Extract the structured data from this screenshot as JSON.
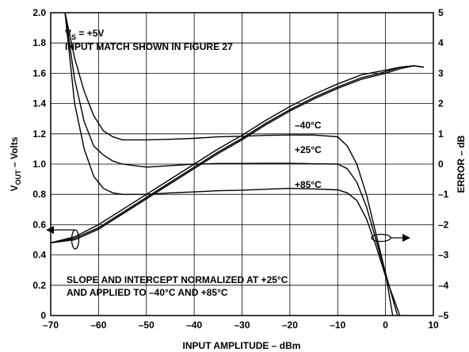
{
  "chart_data": {
    "type": "line",
    "xlabel": "INPUT AMPLITUDE – dBm",
    "ylabel_left": "V_OUT – Volts",
    "ylabel_left_parts": {
      "main": "V",
      "sub": "OUT",
      "rest": " – Volts"
    },
    "ylabel_right": "ERROR – dB",
    "xlim": [
      -70,
      10
    ],
    "ylim_left": [
      0,
      2.0
    ],
    "ylim_right": [
      -5,
      5
    ],
    "x_ticks": [
      -70,
      -60,
      -50,
      -40,
      -30,
      -20,
      -10,
      0,
      10
    ],
    "x_tick_labels": [
      "–70",
      "–60",
      "–50",
      "–40",
      "–30",
      "–20",
      "–10",
      "0",
      "10"
    ],
    "y_left_ticks": [
      0,
      0.2,
      0.4,
      0.6,
      0.8,
      1.0,
      1.2,
      1.4,
      1.6,
      1.8,
      2.0
    ],
    "y_left_tick_labels": [
      "0",
      "0.2",
      "0.4",
      "0.6",
      "0.8",
      "1.0",
      "1.2",
      "1.4",
      "1.6",
      "1.8",
      "2.0"
    ],
    "y_right_ticks": [
      -5,
      -4,
      -3,
      -2,
      -1,
      0,
      1,
      2,
      3,
      4,
      5
    ],
    "y_right_tick_labels": [
      "–5",
      "–4",
      "–3",
      "–2",
      "–1",
      "0",
      "1",
      "2",
      "3",
      "4",
      "5"
    ],
    "grid": true,
    "annotations": {
      "supply": {
        "main": "V",
        "sub": "S",
        "rest": " = +5V"
      },
      "input_match": "INPUT MATCH SHOWN IN FIGURE 27",
      "normalized_line1": "SLOPE AND INTERCEPT NORMALIZED AT +25°C",
      "normalized_line2": "AND APPLIED TO –40°C AND +85°C"
    },
    "vout_series": [
      {
        "name": "",
        "x": [
          -70,
          -65,
          -60,
          -55,
          -50,
          -45,
          -40,
          -35,
          -30,
          -25,
          -20,
          -15,
          -10,
          -5,
          0,
          3,
          6,
          8
        ],
        "y": [
          0.48,
          0.52,
          0.6,
          0.7,
          0.8,
          0.9,
          1.0,
          1.1,
          1.19,
          1.29,
          1.38,
          1.46,
          1.53,
          1.59,
          1.62,
          1.64,
          1.65,
          1.64
        ]
      },
      {
        "name": "",
        "x": [
          -70,
          -65,
          -60,
          -55,
          -50,
          -45,
          -40,
          -35,
          -30,
          -25,
          -20,
          -15,
          -10,
          -5,
          0,
          3,
          6,
          8
        ],
        "y": [
          0.48,
          0.51,
          0.58,
          0.68,
          0.78,
          0.88,
          0.98,
          1.08,
          1.17,
          1.27,
          1.36,
          1.44,
          1.51,
          1.57,
          1.61,
          1.64,
          1.65,
          1.64
        ]
      },
      {
        "name": "",
        "x": [
          -70,
          -65,
          -60,
          -55,
          -50,
          -45,
          -40,
          -35,
          -30,
          -25,
          -20,
          -15,
          -10,
          -5,
          0,
          3,
          6,
          8
        ],
        "y": [
          0.48,
          0.5,
          0.57,
          0.67,
          0.77,
          0.87,
          0.97,
          1.07,
          1.16,
          1.26,
          1.35,
          1.43,
          1.5,
          1.56,
          1.6,
          1.63,
          1.65,
          1.64
        ]
      }
    ],
    "error_series": [
      {
        "name": "–40°C",
        "x": [
          -67,
          -65,
          -63,
          -61,
          -59,
          -57,
          -55,
          -50,
          -45,
          -40,
          -35,
          -30,
          -25,
          -20,
          -15,
          -10,
          -8,
          -6,
          -4,
          -2,
          0,
          1.5
        ],
        "y": [
          5,
          3.5,
          2.4,
          1.6,
          1.1,
          0.9,
          0.8,
          0.8,
          0.82,
          0.85,
          0.9,
          0.92,
          0.95,
          0.96,
          0.96,
          0.9,
          0.6,
          0.0,
          -1.0,
          -2.3,
          -3.6,
          -5
        ]
      },
      {
        "name": "+25°C",
        "x": [
          -67,
          -65,
          -63,
          -61,
          -59,
          -57,
          -55,
          -50,
          -45,
          -40,
          -35,
          -30,
          -25,
          -20,
          -15,
          -10,
          -8,
          -6,
          -4,
          -2,
          0,
          2.5
        ],
        "y": [
          5,
          2.8,
          1.4,
          0.6,
          0.3,
          0.1,
          0.0,
          -0.1,
          -0.05,
          0.0,
          0.02,
          0.02,
          0.03,
          0.03,
          0.01,
          0.0,
          -0.15,
          -0.6,
          -1.4,
          -2.5,
          -3.6,
          -5
        ]
      },
      {
        "name": "+85°C",
        "x": [
          -67,
          -65,
          -63,
          -61,
          -59,
          -57,
          -55,
          -50,
          -45,
          -40,
          -35,
          -30,
          -25,
          -20,
          -15,
          -10,
          -8,
          -6,
          -4,
          -2,
          0,
          3
        ],
        "y": [
          5,
          2.0,
          0.5,
          -0.4,
          -0.8,
          -0.95,
          -1.0,
          -1.0,
          -0.95,
          -0.92,
          -0.88,
          -0.86,
          -0.83,
          -0.8,
          -0.82,
          -0.85,
          -0.95,
          -1.2,
          -1.8,
          -2.7,
          -3.7,
          -5
        ]
      }
    ]
  }
}
